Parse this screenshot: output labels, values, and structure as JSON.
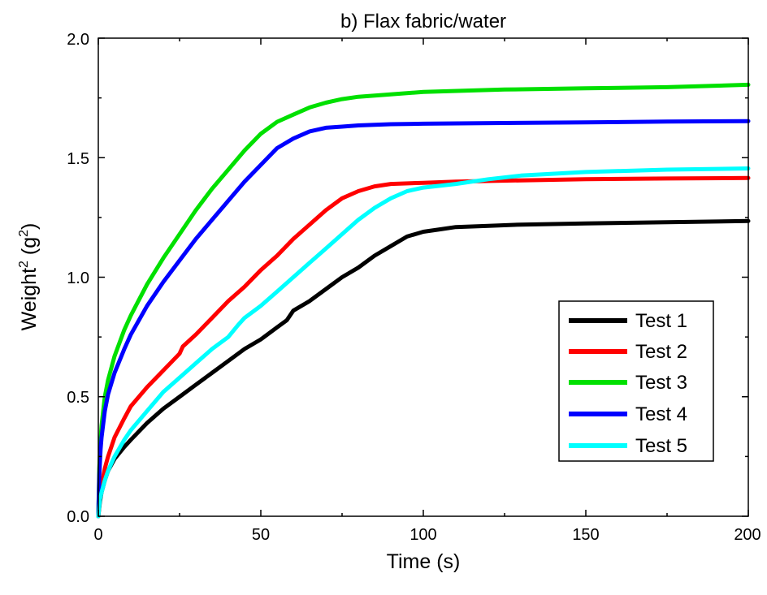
{
  "chart_data": {
    "type": "line",
    "title": "b) Flax fabric/water",
    "xlabel": "Time (s)",
    "ylabel_main": "Weight",
    "ylabel_sup": "2",
    "ylabel_open": " (g",
    "ylabel_close": ")",
    "xlim": [
      0,
      200
    ],
    "ylim": [
      0.0,
      2.0
    ],
    "x_ticks": [
      "0",
      "50",
      "100",
      "150",
      "200"
    ],
    "y_ticks": [
      "0.0",
      "0.5",
      "1.0",
      "1.5",
      "2.0"
    ],
    "legend_position": "bottom-right",
    "grid": false,
    "series": [
      {
        "name": "Test 1",
        "color": "#000000",
        "points": [
          [
            0,
            0
          ],
          [
            0.5,
            0.06
          ],
          [
            1,
            0.1
          ],
          [
            2,
            0.15
          ],
          [
            3,
            0.19
          ],
          [
            5,
            0.24
          ],
          [
            8,
            0.29
          ],
          [
            10,
            0.32
          ],
          [
            15,
            0.39
          ],
          [
            20,
            0.45
          ],
          [
            25,
            0.5
          ],
          [
            30,
            0.55
          ],
          [
            35,
            0.6
          ],
          [
            40,
            0.65
          ],
          [
            45,
            0.7
          ],
          [
            50,
            0.74
          ],
          [
            55,
            0.79
          ],
          [
            58,
            0.82
          ],
          [
            60,
            0.86
          ],
          [
            65,
            0.9
          ],
          [
            70,
            0.95
          ],
          [
            75,
            1.0
          ],
          [
            80,
            1.04
          ],
          [
            85,
            1.09
          ],
          [
            90,
            1.13
          ],
          [
            95,
            1.17
          ],
          [
            100,
            1.19
          ],
          [
            105,
            1.2
          ],
          [
            110,
            1.21
          ],
          [
            120,
            1.215
          ],
          [
            130,
            1.22
          ],
          [
            150,
            1.225
          ],
          [
            175,
            1.23
          ],
          [
            200,
            1.235
          ]
        ]
      },
      {
        "name": "Test 2",
        "color": "#ff0000",
        "points": [
          [
            0,
            0
          ],
          [
            0.5,
            0.08
          ],
          [
            1,
            0.13
          ],
          [
            2,
            0.2
          ],
          [
            3,
            0.25
          ],
          [
            5,
            0.33
          ],
          [
            8,
            0.41
          ],
          [
            10,
            0.46
          ],
          [
            15,
            0.54
          ],
          [
            20,
            0.61
          ],
          [
            25,
            0.68
          ],
          [
            26,
            0.71
          ],
          [
            30,
            0.76
          ],
          [
            35,
            0.83
          ],
          [
            40,
            0.9
          ],
          [
            45,
            0.96
          ],
          [
            50,
            1.03
          ],
          [
            55,
            1.09
          ],
          [
            60,
            1.16
          ],
          [
            65,
            1.22
          ],
          [
            70,
            1.28
          ],
          [
            75,
            1.33
          ],
          [
            80,
            1.36
          ],
          [
            85,
            1.38
          ],
          [
            90,
            1.39
          ],
          [
            100,
            1.395
          ],
          [
            110,
            1.4
          ],
          [
            130,
            1.405
          ],
          [
            150,
            1.41
          ],
          [
            175,
            1.413
          ],
          [
            200,
            1.415
          ]
        ]
      },
      {
        "name": "Test 3",
        "color": "#00e000",
        "points": [
          [
            0,
            0
          ],
          [
            0.3,
            0.2
          ],
          [
            0.7,
            0.32
          ],
          [
            1,
            0.38
          ],
          [
            2,
            0.5
          ],
          [
            3,
            0.57
          ],
          [
            5,
            0.67
          ],
          [
            8,
            0.78
          ],
          [
            10,
            0.84
          ],
          [
            15,
            0.97
          ],
          [
            20,
            1.08
          ],
          [
            25,
            1.18
          ],
          [
            30,
            1.28
          ],
          [
            35,
            1.37
          ],
          [
            40,
            1.45
          ],
          [
            45,
            1.53
          ],
          [
            50,
            1.6
          ],
          [
            55,
            1.65
          ],
          [
            60,
            1.68
          ],
          [
            65,
            1.71
          ],
          [
            70,
            1.73
          ],
          [
            75,
            1.745
          ],
          [
            80,
            1.755
          ],
          [
            90,
            1.765
          ],
          [
            100,
            1.775
          ],
          [
            125,
            1.785
          ],
          [
            150,
            1.79
          ],
          [
            175,
            1.795
          ],
          [
            200,
            1.805
          ]
        ]
      },
      {
        "name": "Test 4",
        "color": "#0000ff",
        "points": [
          [
            0,
            0
          ],
          [
            0.3,
            0.17
          ],
          [
            0.7,
            0.28
          ],
          [
            1,
            0.33
          ],
          [
            2,
            0.44
          ],
          [
            3,
            0.51
          ],
          [
            5,
            0.6
          ],
          [
            8,
            0.7
          ],
          [
            10,
            0.76
          ],
          [
            15,
            0.88
          ],
          [
            20,
            0.98
          ],
          [
            25,
            1.07
          ],
          [
            30,
            1.16
          ],
          [
            35,
            1.24
          ],
          [
            40,
            1.32
          ],
          [
            45,
            1.4
          ],
          [
            50,
            1.47
          ],
          [
            55,
            1.54
          ],
          [
            60,
            1.58
          ],
          [
            65,
            1.61
          ],
          [
            70,
            1.625
          ],
          [
            75,
            1.63
          ],
          [
            80,
            1.635
          ],
          [
            90,
            1.64
          ],
          [
            100,
            1.642
          ],
          [
            125,
            1.645
          ],
          [
            150,
            1.648
          ],
          [
            175,
            1.651
          ],
          [
            200,
            1.653
          ]
        ]
      },
      {
        "name": "Test 5",
        "color": "#00ffff",
        "points": [
          [
            0,
            0
          ],
          [
            0.5,
            0.07
          ],
          [
            1,
            0.1
          ],
          [
            2,
            0.15
          ],
          [
            3,
            0.19
          ],
          [
            5,
            0.25
          ],
          [
            8,
            0.32
          ],
          [
            10,
            0.36
          ],
          [
            15,
            0.44
          ],
          [
            20,
            0.52
          ],
          [
            25,
            0.58
          ],
          [
            30,
            0.64
          ],
          [
            35,
            0.7
          ],
          [
            40,
            0.75
          ],
          [
            43,
            0.8
          ],
          [
            45,
            0.83
          ],
          [
            50,
            0.88
          ],
          [
            55,
            0.94
          ],
          [
            60,
            1.0
          ],
          [
            65,
            1.06
          ],
          [
            70,
            1.12
          ],
          [
            75,
            1.18
          ],
          [
            80,
            1.24
          ],
          [
            85,
            1.29
          ],
          [
            90,
            1.33
          ],
          [
            95,
            1.36
          ],
          [
            100,
            1.375
          ],
          [
            110,
            1.39
          ],
          [
            120,
            1.41
          ],
          [
            130,
            1.425
          ],
          [
            150,
            1.44
          ],
          [
            175,
            1.45
          ],
          [
            200,
            1.455
          ]
        ]
      }
    ]
  }
}
